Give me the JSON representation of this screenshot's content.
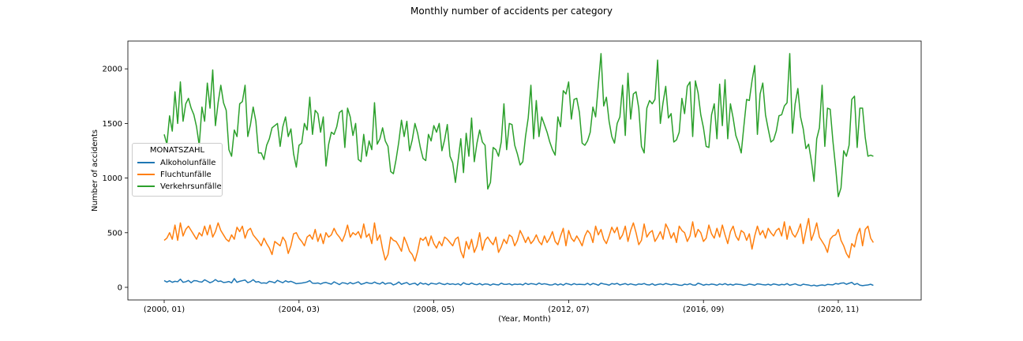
{
  "chart_data": {
    "type": "line",
    "title": "Monthly number of accidents per category",
    "xlabel": "(Year, Month)",
    "ylabel": "Number of accidents",
    "x_tick_labels": [
      "(2000, 01)",
      "(2004, 03)",
      "(2008, 05)",
      "(2012, 07)",
      "(2016, 09)",
      "(2020, 11)"
    ],
    "y_ticks": [
      0,
      500,
      1000,
      1500,
      2000
    ],
    "ylim": [
      -95,
      2235
    ],
    "x_start": "2000-01",
    "x_end": "2021-12",
    "legend_title": "MONATSZAHL",
    "legend_position": "center-left",
    "grid": false,
    "series": [
      {
        "name": "Alkoholunfälle",
        "color": "#1f77b4",
        "values": [
          62,
          48,
          60,
          46,
          55,
          51,
          75,
          46,
          51,
          63,
          42,
          61,
          60,
          51,
          48,
          69,
          56,
          42,
          52,
          71,
          53,
          58,
          44,
          47,
          53,
          41,
          80,
          46,
          55,
          61,
          67,
          43,
          52,
          70,
          48,
          52,
          38,
          41,
          37,
          55,
          50,
          41,
          64,
          52,
          42,
          60,
          48,
          55,
          45,
          33,
          36,
          39,
          43,
          49,
          61,
          38,
          36,
          40,
          30,
          41,
          45,
          36,
          29,
          50,
          38,
          25,
          42,
          39,
          30,
          44,
          32,
          40,
          50,
          28,
          34,
          45,
          38,
          35,
          48,
          36,
          31,
          47,
          29,
          39,
          40,
          22,
          31,
          49,
          28,
          37,
          44,
          25,
          33,
          38,
          20,
          42,
          30,
          35,
          22,
          38,
          33,
          29,
          41,
          31,
          25,
          36,
          27,
          32,
          25,
          33,
          20,
          42,
          30,
          26,
          39,
          28,
          24,
          35,
          22,
          31,
          29,
          19,
          31,
          25,
          22,
          38,
          28,
          27,
          33,
          21,
          30,
          26,
          30,
          22,
          38,
          26,
          34,
          31,
          24,
          39,
          27,
          33,
          28,
          22,
          23,
          33,
          21,
          31,
          20,
          35,
          30,
          22,
          34,
          25,
          28,
          26,
          24,
          37,
          22,
          35,
          29,
          19,
          38,
          31,
          27,
          20,
          34,
          29,
          36,
          22,
          28,
          34,
          23,
          32,
          25,
          21,
          31,
          27,
          35,
          24,
          22,
          33,
          19,
          26,
          31,
          24,
          35,
          29,
          23,
          30,
          26,
          20,
          18,
          29,
          24,
          33,
          22,
          20,
          38,
          30,
          19,
          27,
          23,
          30,
          26,
          19,
          31,
          24,
          34,
          22,
          28,
          20,
          30,
          27,
          25,
          18,
          21,
          30,
          25,
          19,
          32,
          29,
          24,
          22,
          28,
          20,
          31,
          26,
          20,
          27,
          23,
          34,
          19,
          25,
          32,
          22,
          17,
          29,
          24,
          21,
          14,
          20,
          12,
          18,
          22,
          17,
          27,
          24,
          23,
          35,
          30,
          38,
          41,
          28,
          37,
          45,
          25,
          35,
          20,
          15,
          19,
          22,
          28,
          18
        ]
      },
      {
        "name": "Fluchtunfälle",
        "color": "#ff7f0e",
        "values": [
          430,
          450,
          500,
          440,
          570,
          430,
          590,
          470,
          530,
          560,
          520,
          480,
          440,
          500,
          470,
          560,
          480,
          570,
          460,
          510,
          590,
          520,
          480,
          440,
          420,
          480,
          440,
          550,
          510,
          560,
          450,
          520,
          540,
          480,
          450,
          420,
          380,
          450,
          400,
          360,
          300,
          420,
          400,
          380,
          460,
          420,
          310,
          380,
          490,
          500,
          450,
          420,
          380,
          460,
          480,
          440,
          530,
          420,
          490,
          400,
          500,
          460,
          480,
          540,
          490,
          460,
          420,
          480,
          570,
          460,
          500,
          480,
          510,
          450,
          580,
          460,
          490,
          400,
          590,
          430,
          480,
          350,
          250,
          300,
          460,
          430,
          420,
          380,
          330,
          460,
          400,
          330,
          300,
          240,
          330,
          450,
          430,
          460,
          380,
          470,
          400,
          360,
          420,
          380,
          460,
          440,
          410,
          380,
          440,
          460,
          330,
          270,
          420,
          350,
          440,
          320,
          380,
          500,
          340,
          430,
          460,
          420,
          390,
          460,
          320,
          370,
          440,
          400,
          480,
          460,
          380,
          430,
          520,
          470,
          410,
          460,
          400,
          430,
          480,
          420,
          390,
          470,
          410,
          450,
          510,
          420,
          390,
          470,
          540,
          380,
          520,
          450,
          420,
          470,
          430,
          380,
          470,
          520,
          490,
          410,
          560,
          480,
          530,
          440,
          400,
          470,
          550,
          500,
          550,
          440,
          480,
          560,
          420,
          520,
          590,
          500,
          390,
          430,
          580,
          460,
          500,
          520,
          420,
          460,
          510,
          440,
          580,
          530,
          450,
          500,
          410,
          560,
          520,
          500,
          420,
          470,
          600,
          460,
          530,
          500,
          420,
          450,
          570,
          490,
          450,
          540,
          460,
          570,
          480,
          400,
          510,
          560,
          470,
          430,
          520,
          500,
          430,
          490,
          350,
          470,
          560,
          480,
          520,
          450,
          540,
          500,
          470,
          520,
          540,
          470,
          600,
          440,
          560,
          490,
          460,
          510,
          580,
          400,
          520,
          630,
          430,
          500,
          590,
          460,
          420,
          380,
          320,
          440,
          470,
          480,
          530,
          430,
          380,
          310,
          270,
          400,
          370,
          480,
          540,
          380,
          530,
          560,
          450,
          410
        ]
      },
      {
        "name": "Verkehrsunfälle",
        "color": "#2ca02c",
        "values": [
          1400,
          1310,
          1570,
          1430,
          1790,
          1500,
          1880,
          1520,
          1680,
          1730,
          1640,
          1580,
          1470,
          1300,
          1650,
          1520,
          1870,
          1640,
          1990,
          1480,
          1690,
          1850,
          1690,
          1620,
          1260,
          1200,
          1440,
          1380,
          1680,
          1700,
          1850,
          1380,
          1490,
          1650,
          1520,
          1230,
          1230,
          1170,
          1300,
          1360,
          1460,
          1480,
          1500,
          1290,
          1470,
          1560,
          1380,
          1450,
          1220,
          1100,
          1300,
          1320,
          1500,
          1440,
          1740,
          1400,
          1620,
          1590,
          1420,
          1560,
          1110,
          1310,
          1420,
          1400,
          1470,
          1600,
          1620,
          1280,
          1640,
          1560,
          1390,
          1500,
          1170,
          1150,
          1400,
          1200,
          1340,
          1260,
          1690,
          1310,
          1360,
          1460,
          1340,
          1290,
          1060,
          1040,
          1170,
          1330,
          1530,
          1380,
          1520,
          1250,
          1350,
          1500,
          1410,
          1280,
          1180,
          1160,
          1400,
          1340,
          1480,
          1420,
          1500,
          1250,
          1350,
          1490,
          1200,
          1140,
          960,
          1160,
          1360,
          1050,
          1410,
          1200,
          1550,
          1150,
          1320,
          1440,
          1330,
          1300,
          900,
          960,
          1280,
          1260,
          1200,
          1330,
          1680,
          1260,
          1500,
          1490,
          1300,
          1220,
          1120,
          1150,
          1380,
          1550,
          1850,
          1360,
          1710,
          1380,
          1560,
          1490,
          1420,
          1330,
          1260,
          1210,
          1560,
          1470,
          1800,
          1770,
          1880,
          1540,
          1720,
          1730,
          1600,
          1320,
          1300,
          1340,
          1420,
          1650,
          1560,
          1850,
          2140,
          1660,
          1740,
          1520,
          1380,
          1320,
          1500,
          1560,
          1850,
          1390,
          1960,
          1540,
          1770,
          1790,
          1640,
          1290,
          1230,
          1640,
          1710,
          1680,
          1720,
          2080,
          1500,
          1690,
          1840,
          1550,
          1590,
          1330,
          1350,
          1420,
          1730,
          1590,
          1840,
          1880,
          1380,
          1890,
          1780,
          1580,
          1460,
          1290,
          1280,
          1580,
          1680,
          1360,
          1860,
          1480,
          1900,
          1360,
          1680,
          1550,
          1390,
          1320,
          1230,
          1480,
          1720,
          1710,
          1890,
          2030,
          1400,
          1770,
          1870,
          1580,
          1450,
          1330,
          1350,
          1430,
          1570,
          1580,
          1660,
          1690,
          2140,
          1410,
          1680,
          1820,
          1560,
          1450,
          1270,
          1310,
          1160,
          970,
          1360,
          1460,
          1850,
          1290,
          1640,
          1630,
          1340,
          1100,
          830,
          910,
          1250,
          1200,
          1300,
          1720,
          1750,
          1280,
          1640,
          1640,
          1370,
          1200,
          1210,
          1200
        ]
      }
    ]
  }
}
